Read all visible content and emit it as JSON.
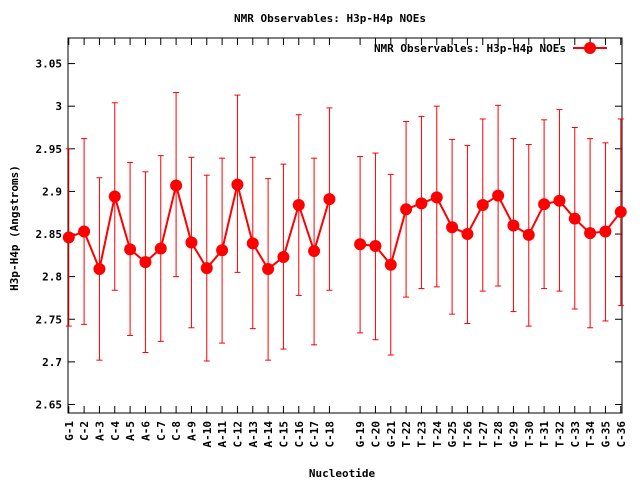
{
  "chart_data": {
    "type": "line",
    "title": "NMR Observables: H3p-H4p NOEs",
    "xlabel": "Nucleotide",
    "ylabel": "H3p-H4p (Angstroms)",
    "ylim": [
      2.64,
      3.08
    ],
    "yticks": [
      "2.65",
      "2.7",
      "2.75",
      "2.8",
      "2.85",
      "2.9",
      "2.95",
      "3",
      "3.05"
    ],
    "legend_position": "top-right",
    "grid": false,
    "categories": [
      "G-1",
      "C-2",
      "A-3",
      "C-4",
      "A-5",
      "A-6",
      "C-7",
      "C-8",
      "A-9",
      "A-10",
      "A-11",
      "C-12",
      "A-13",
      "A-14",
      "C-15",
      "C-16",
      "C-17",
      "C-18",
      "G-19",
      "C-20",
      "G-21",
      "T-22",
      "T-23",
      "T-24",
      "G-25",
      "T-26",
      "T-27",
      "T-28",
      "G-29",
      "T-30",
      "T-31",
      "T-32",
      "C-33",
      "T-34",
      "G-35",
      "C-36"
    ],
    "x": [
      1,
      2,
      3,
      4,
      5,
      6,
      7,
      8,
      9,
      10,
      11,
      12,
      13,
      14,
      15,
      16,
      17,
      18,
      20,
      21,
      22,
      23,
      24,
      25,
      26,
      27,
      28,
      29,
      30,
      31,
      32,
      33,
      34,
      35,
      36,
      37
    ],
    "segments": [
      [
        0,
        17
      ],
      [
        18,
        35
      ]
    ],
    "series": [
      {
        "name": "NMR Observables: H3p-H4p NOEs",
        "color": "#ff0000",
        "values": [
          2.846,
          2.853,
          2.809,
          2.894,
          2.832,
          2.817,
          2.833,
          2.907,
          2.84,
          2.81,
          2.831,
          2.908,
          2.839,
          2.809,
          2.823,
          2.884,
          2.83,
          2.891,
          2.838,
          2.836,
          2.814,
          2.879,
          2.886,
          2.893,
          2.858,
          2.85,
          2.884,
          2.895,
          2.86,
          2.849,
          2.885,
          2.889,
          2.868,
          2.851,
          2.853,
          2.876
        ],
        "err_low": [
          2.742,
          2.744,
          2.702,
          2.784,
          2.731,
          2.711,
          2.724,
          2.8,
          2.74,
          2.701,
          2.722,
          2.805,
          2.739,
          2.702,
          2.715,
          2.778,
          2.72,
          2.784,
          2.734,
          2.726,
          2.708,
          2.776,
          2.786,
          2.788,
          2.756,
          2.745,
          2.783,
          2.789,
          2.759,
          2.742,
          2.786,
          2.783,
          2.762,
          2.74,
          2.748,
          2.766
        ],
        "err_high": [
          2.95,
          2.962,
          2.916,
          3.004,
          2.934,
          2.923,
          2.942,
          3.016,
          2.94,
          2.919,
          2.939,
          3.013,
          2.94,
          2.915,
          2.932,
          2.99,
          2.939,
          2.998,
          2.941,
          2.945,
          2.92,
          2.982,
          2.988,
          3.0,
          2.961,
          2.954,
          2.985,
          3.001,
          2.962,
          2.955,
          2.984,
          2.996,
          2.975,
          2.962,
          2.957,
          2.985
        ]
      }
    ]
  }
}
